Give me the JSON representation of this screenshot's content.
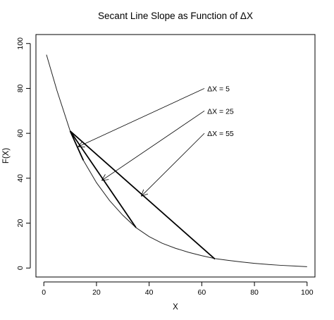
{
  "chart_data": {
    "type": "line",
    "title": "Secant Line Slope as Function of ΔX",
    "xlabel": "X",
    "ylabel": "F(X)",
    "xlim": [
      -3,
      103
    ],
    "ylim": [
      -4,
      104
    ],
    "xticks": [
      0,
      20,
      40,
      60,
      80,
      100
    ],
    "yticks": [
      0,
      20,
      40,
      60,
      80,
      100
    ],
    "grid": false,
    "legend": "none",
    "curve": {
      "x_start": 1,
      "x_end": 100,
      "points": [
        [
          1,
          95
        ],
        [
          5,
          79
        ],
        [
          10,
          61
        ],
        [
          15,
          48
        ],
        [
          20,
          38
        ],
        [
          25,
          30
        ],
        [
          30,
          23.5
        ],
        [
          35,
          18
        ],
        [
          40,
          14
        ],
        [
          45,
          11
        ],
        [
          50,
          8.8
        ],
        [
          55,
          7
        ],
        [
          60,
          5.5
        ],
        [
          65,
          4.2
        ],
        [
          70,
          3.4
        ],
        [
          75,
          2.7
        ],
        [
          80,
          2.1
        ],
        [
          85,
          1.6
        ],
        [
          90,
          1.2
        ],
        [
          95,
          0.9
        ],
        [
          100,
          0.6
        ]
      ]
    },
    "secants": [
      {
        "from": [
          10,
          61
        ],
        "to": [
          15,
          48
        ]
      },
      {
        "from": [
          10,
          61
        ],
        "to": [
          35,
          18
        ]
      },
      {
        "from": [
          10,
          61
        ],
        "to": [
          65,
          4
        ]
      }
    ],
    "annotations": [
      {
        "text": "ΔX = 5",
        "label_at": [
          61,
          80
        ],
        "arrow_tip": [
          13,
          54
        ]
      },
      {
        "text": "ΔX = 25",
        "label_at": [
          61,
          70
        ],
        "arrow_tip": [
          22,
          39
        ]
      },
      {
        "text": "ΔX = 55",
        "label_at": [
          61,
          60
        ],
        "arrow_tip": [
          37,
          32
        ]
      }
    ]
  }
}
